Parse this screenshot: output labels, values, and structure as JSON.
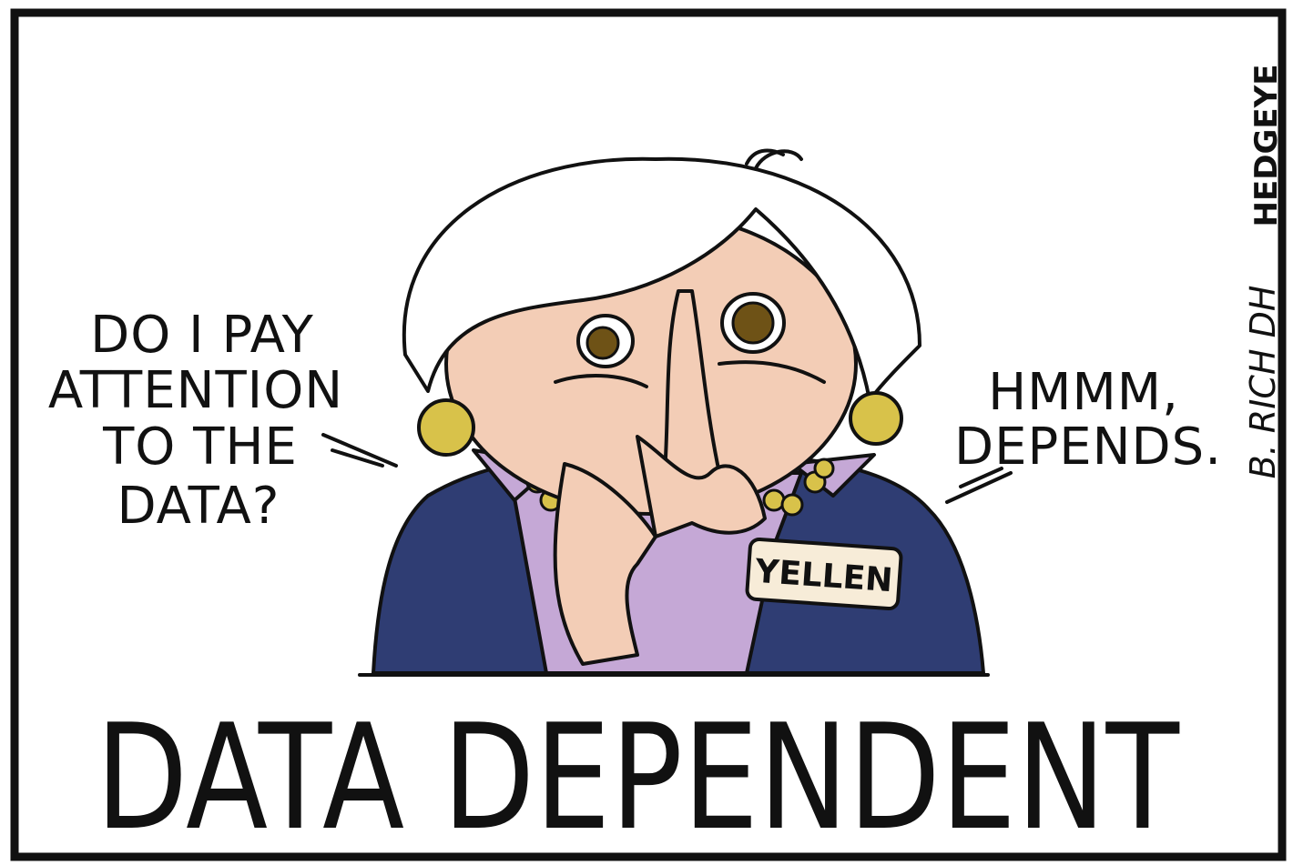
{
  "speech_left": {
    "lines": [
      "DO I PAY",
      "ATTENTION",
      "TO THE",
      "DATA?"
    ]
  },
  "speech_right": {
    "lines": [
      "HMMM,",
      "DEPENDS."
    ]
  },
  "name_tag": "YELLEN",
  "caption": "DATA DEPENDENT",
  "signature": "B. RICH DH",
  "brand": "HEDGEYE"
}
